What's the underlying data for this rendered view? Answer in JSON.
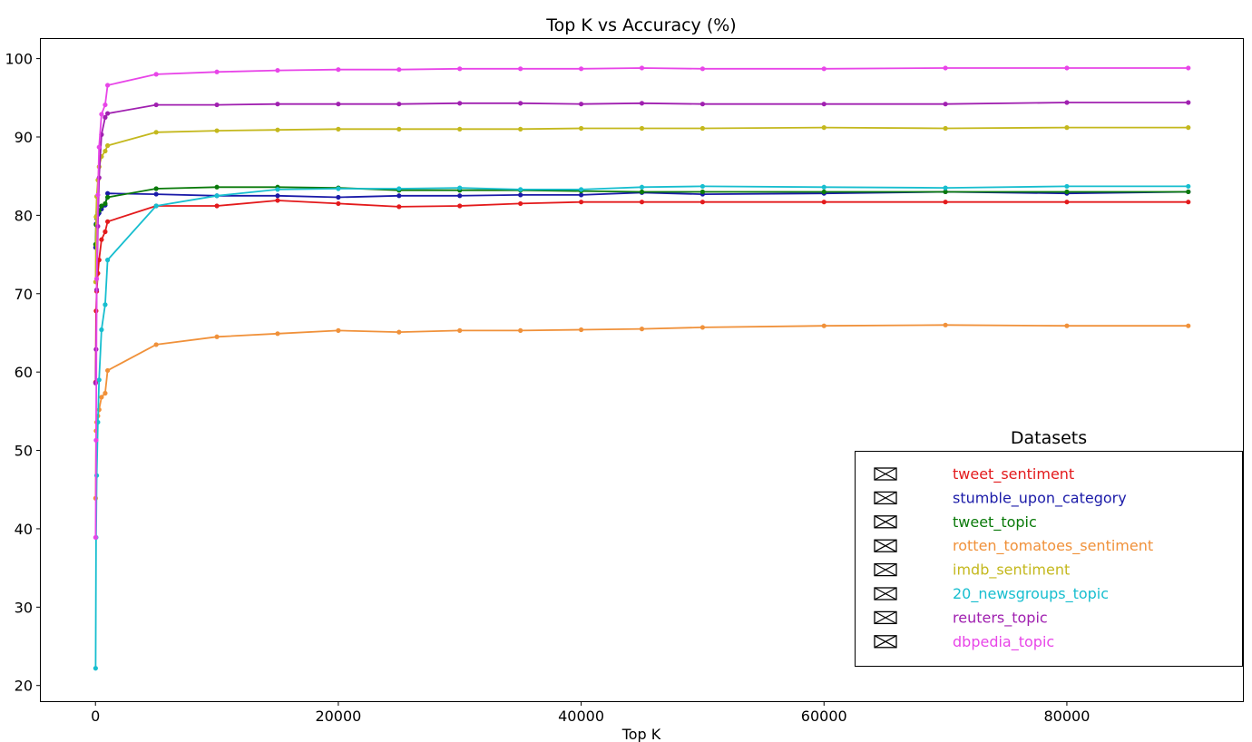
{
  "chart_data": {
    "type": "line",
    "title": "Top K vs Accuracy (%)",
    "xlabel": "Top K",
    "ylabel": "",
    "xlim": [
      -4500,
      94500
    ],
    "ylim": [
      18,
      102.5
    ],
    "x_ticks": [
      0,
      20000,
      40000,
      60000,
      80000
    ],
    "y_ticks": [
      20,
      30,
      40,
      50,
      60,
      70,
      80,
      90,
      100
    ],
    "grid": false,
    "legend": {
      "title": "Datasets",
      "position": "lower-right"
    },
    "series": [
      {
        "name": "tweet_sentiment",
        "color": "#e31a1c",
        "x": [
          10,
          50,
          100,
          200,
          300,
          500,
          800,
          1000,
          5000,
          10000,
          15000,
          20000,
          25000,
          30000,
          35000,
          40000,
          45000,
          50000,
          60000,
          70000,
          80000,
          90000
        ],
        "y": [
          58.7,
          67.8,
          70.3,
          72.6,
          74.3,
          76.9,
          77.9,
          79.2,
          81.2,
          81.2,
          81.9,
          81.5,
          81.1,
          81.2,
          81.5,
          81.7,
          81.7,
          81.7,
          81.7,
          81.7,
          81.7,
          81.7
        ]
      },
      {
        "name": "stumble_upon_category",
        "color": "#1a1aa8",
        "x": [
          10,
          50,
          100,
          200,
          300,
          500,
          800,
          1000,
          5000,
          10000,
          15000,
          20000,
          25000,
          30000,
          35000,
          40000,
          45000,
          50000,
          60000,
          70000,
          80000,
          90000
        ],
        "y": [
          75.9,
          78.9,
          79.6,
          80.1,
          80.3,
          80.8,
          81.3,
          82.8,
          82.7,
          82.5,
          82.5,
          82.3,
          82.5,
          82.5,
          82.6,
          82.6,
          82.9,
          82.7,
          82.8,
          83.0,
          82.8,
          83.0
        ]
      },
      {
        "name": "tweet_topic",
        "color": "#0a7a0a",
        "x": [
          10,
          50,
          100,
          200,
          300,
          500,
          800,
          1000,
          5000,
          10000,
          15000,
          20000,
          25000,
          30000,
          35000,
          40000,
          45000,
          50000,
          60000,
          70000,
          80000,
          90000
        ],
        "y": [
          76.3,
          78.8,
          79.9,
          80.4,
          80.6,
          81.2,
          81.5,
          82.3,
          83.4,
          83.6,
          83.6,
          83.5,
          83.2,
          83.2,
          83.2,
          83.1,
          83.0,
          83.0,
          83.0,
          83.0,
          83.0,
          83.0
        ]
      },
      {
        "name": "rotten_tomatoes_sentiment",
        "color": "#f0913a",
        "x": [
          10,
          50,
          100,
          200,
          300,
          500,
          800,
          1000,
          5000,
          10000,
          15000,
          20000,
          25000,
          30000,
          35000,
          40000,
          45000,
          50000,
          60000,
          70000,
          80000,
          90000
        ],
        "y": [
          43.9,
          52.5,
          53.6,
          54.4,
          55.2,
          56.8,
          57.3,
          60.2,
          63.5,
          64.5,
          64.9,
          65.3,
          65.1,
          65.3,
          65.3,
          65.4,
          65.5,
          65.7,
          65.9,
          66.0,
          65.9,
          65.9
        ]
      },
      {
        "name": "imdb_sentiment",
        "color": "#c4b81d",
        "x": [
          10,
          50,
          100,
          200,
          300,
          500,
          800,
          1000,
          5000,
          10000,
          15000,
          20000,
          25000,
          30000,
          35000,
          40000,
          45000,
          50000,
          60000,
          70000,
          80000,
          90000
        ],
        "y": [
          71.5,
          79.8,
          82.4,
          84.5,
          86.2,
          87.5,
          88.2,
          88.9,
          90.6,
          90.8,
          90.9,
          91.0,
          91.0,
          91.0,
          91.0,
          91.1,
          91.1,
          91.1,
          91.2,
          91.1,
          91.2,
          91.2
        ]
      },
      {
        "name": "20_newsgroups_topic",
        "color": "#17becf",
        "x": [
          10,
          50,
          100,
          200,
          300,
          500,
          800,
          1000,
          5000,
          10000,
          15000,
          20000,
          25000,
          30000,
          35000,
          40000,
          45000,
          50000,
          60000,
          70000,
          80000,
          90000
        ],
        "y": [
          22.2,
          38.9,
          46.8,
          53.6,
          59.0,
          65.4,
          68.6,
          74.3,
          81.2,
          82.5,
          83.3,
          83.4,
          83.4,
          83.5,
          83.3,
          83.3,
          83.6,
          83.7,
          83.6,
          83.5,
          83.7,
          83.7
        ]
      },
      {
        "name": "reuters_topic",
        "color": "#a020b0",
        "x": [
          10,
          50,
          100,
          200,
          300,
          500,
          800,
          1000,
          5000,
          10000,
          15000,
          20000,
          25000,
          30000,
          35000,
          40000,
          45000,
          50000,
          60000,
          70000,
          80000,
          90000
        ],
        "y": [
          58.6,
          62.9,
          70.5,
          78.6,
          84.8,
          90.3,
          92.5,
          93.0,
          94.1,
          94.1,
          94.2,
          94.2,
          94.2,
          94.3,
          94.3,
          94.2,
          94.3,
          94.2,
          94.2,
          94.2,
          94.4,
          94.4
        ]
      },
      {
        "name": "dbpedia_topic",
        "color": "#e845e8",
        "x": [
          10,
          50,
          100,
          200,
          300,
          500,
          800,
          1000,
          5000,
          10000,
          15000,
          20000,
          25000,
          30000,
          35000,
          40000,
          45000,
          50000,
          60000,
          70000,
          80000,
          90000
        ],
        "y": [
          38.9,
          51.3,
          71.9,
          82.6,
          88.7,
          92.9,
          94.1,
          96.6,
          98.0,
          98.3,
          98.5,
          98.6,
          98.6,
          98.7,
          98.7,
          98.7,
          98.8,
          98.7,
          98.7,
          98.8,
          98.8,
          98.8
        ]
      }
    ]
  }
}
